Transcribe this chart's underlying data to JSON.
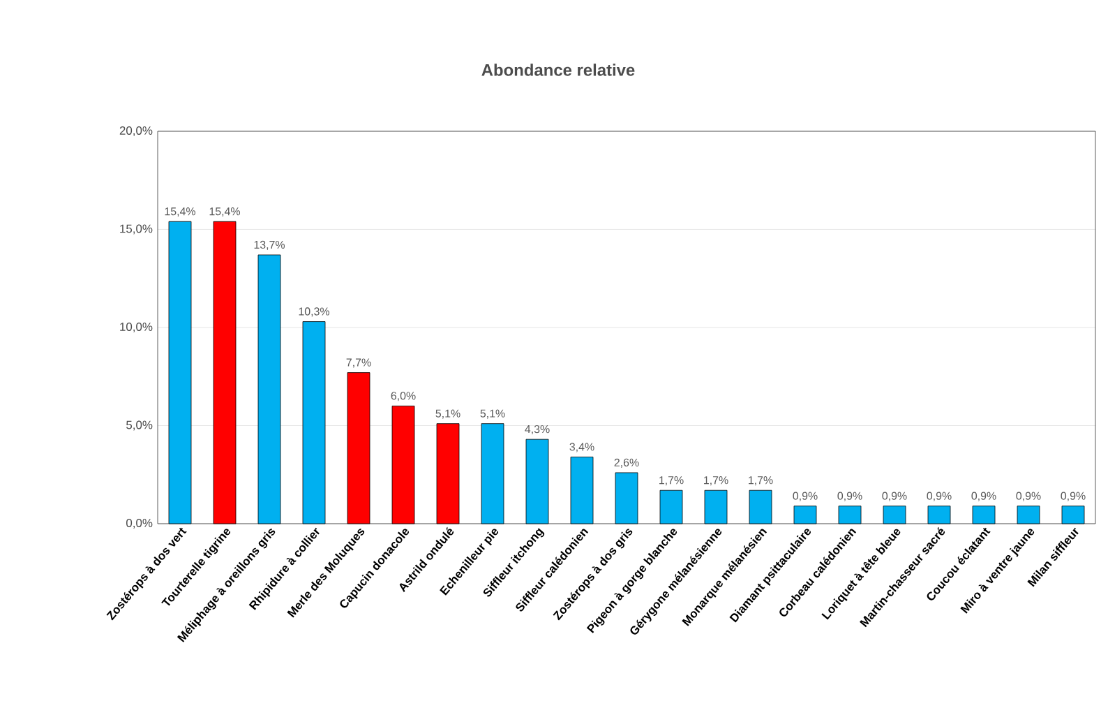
{
  "chart_data": {
    "type": "bar",
    "title": "Abondance relative",
    "categories": [
      "Zostérops à dos vert",
      "Tourterelle tigrine",
      "Méliphage à oreillons gris",
      "Rhipidure à collier",
      "Merle des Moluques",
      "Capucin donacole",
      "Astrild ondulé",
      "Echenilleur pie",
      "Siffleur itchong",
      "Siffleur calédonien",
      "Zostérops à dos gris",
      "Pigeon à gorge blanche",
      "Gérygone mélanésienne",
      "Monarque mélanésien",
      "Diamant psittaculaire",
      "Corbeau calédonien",
      "Loriquet à tête bleue",
      "Martin-chasseur sacré",
      "Coucou éclatant",
      "Miro à ventre jaune",
      "Milan siffleur"
    ],
    "values": [
      15.4,
      15.4,
      13.7,
      10.3,
      7.7,
      6.0,
      5.1,
      5.1,
      4.3,
      3.4,
      2.6,
      1.7,
      1.7,
      1.7,
      0.9,
      0.9,
      0.9,
      0.9,
      0.9,
      0.9,
      0.9
    ],
    "value_labels": [
      "15,4%",
      "15,4%",
      "13,7%",
      "10,3%",
      "7,7%",
      "6,0%",
      "5,1%",
      "5,1%",
      "4,3%",
      "3,4%",
      "2,6%",
      "1,7%",
      "1,7%",
      "1,7%",
      "0,9%",
      "0,9%",
      "0,9%",
      "0,9%",
      "0,9%",
      "0,9%",
      "0,9%"
    ],
    "colors": [
      "#00b0f0",
      "#ff0000",
      "#00b0f0",
      "#00b0f0",
      "#ff0000",
      "#ff0000",
      "#ff0000",
      "#00b0f0",
      "#00b0f0",
      "#00b0f0",
      "#00b0f0",
      "#00b0f0",
      "#00b0f0",
      "#00b0f0",
      "#00b0f0",
      "#00b0f0",
      "#00b0f0",
      "#00b0f0",
      "#00b0f0",
      "#00b0f0",
      "#00b0f0"
    ],
    "ylim": [
      0,
      20
    ],
    "yticks": [
      {
        "value": 0,
        "label": "0,0%"
      },
      {
        "value": 5,
        "label": "5,0%"
      },
      {
        "value": 10,
        "label": "10,0%"
      },
      {
        "value": 15,
        "label": "15,0%"
      },
      {
        "value": 20,
        "label": "20,0%"
      }
    ],
    "grid": "y"
  }
}
